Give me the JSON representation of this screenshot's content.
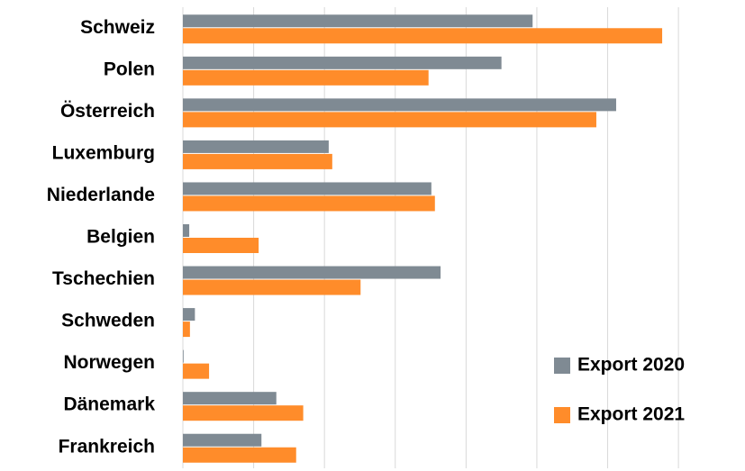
{
  "chart_data": {
    "type": "barh",
    "categories": [
      "Schweiz",
      "Polen",
      "Österreich",
      "Luxemburg",
      "Niederlande",
      "Belgien",
      "Tschechien",
      "Schweden",
      "Norwegen",
      "Dänemark",
      "Frankreich"
    ],
    "series": [
      {
        "name": "Export 2020",
        "color": "#7f8a93",
        "values": [
          4.94,
          4.5,
          6.12,
          2.06,
          3.51,
          0.09,
          3.64,
          0.17,
          0.01,
          1.32,
          1.11
        ]
      },
      {
        "name": "Export 2021",
        "color": "#ff8c2a",
        "values": [
          6.77,
          3.47,
          5.84,
          2.11,
          3.56,
          1.07,
          2.51,
          0.1,
          0.37,
          1.7,
          1.6
        ]
      }
    ],
    "xlim": [
      0,
      7.8
    ],
    "xticks": [
      0,
      1,
      2,
      3,
      4,
      5,
      6,
      7
    ],
    "grid": true,
    "legend": "lower-right"
  }
}
